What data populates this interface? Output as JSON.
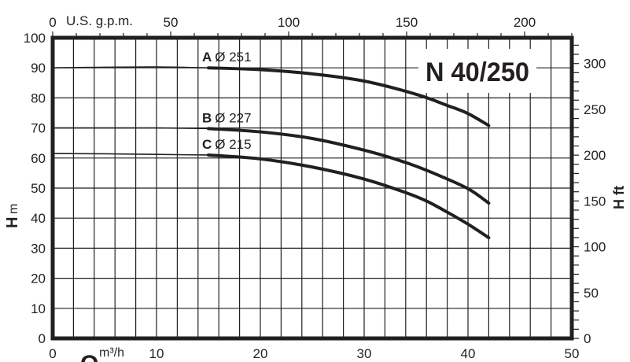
{
  "chart_data": {
    "type": "line",
    "title": "N 40/250",
    "xlabel": "Q",
    "xunit": "m³/h",
    "x2label": "U.S. g.p.m.",
    "ylabel": "H",
    "yunit": "m",
    "y2label": "H ft",
    "xlim": [
      0,
      50
    ],
    "ylim": [
      0,
      100
    ],
    "x2lim": [
      0,
      220
    ],
    "y2lim": [
      0,
      328
    ],
    "grid": true,
    "x_ticks": [
      "0",
      "10",
      "20",
      "30",
      "40",
      "50"
    ],
    "y_ticks": [
      "0",
      "10",
      "20",
      "30",
      "40",
      "50",
      "60",
      "70",
      "80",
      "90",
      "100"
    ],
    "x2_ticks": [
      "0",
      "50",
      "100",
      "150",
      "200"
    ],
    "y2_ticks": [
      "0",
      "50",
      "100",
      "150",
      "200",
      "250",
      "300"
    ],
    "series": [
      {
        "name": "A",
        "diameter": "Ø 251",
        "thin_until": 15,
        "points": [
          [
            0,
            90
          ],
          [
            5,
            90.2
          ],
          [
            10,
            90.3
          ],
          [
            15,
            90
          ],
          [
            20,
            89.4
          ],
          [
            25,
            88
          ],
          [
            30,
            85.6
          ],
          [
            35,
            81.2
          ],
          [
            38,
            77.5
          ],
          [
            40,
            74.8
          ],
          [
            42,
            70.8
          ]
        ]
      },
      {
        "name": "B",
        "diameter": "Ø 227",
        "thin_until": 15,
        "points": [
          [
            0,
            70
          ],
          [
            5,
            70
          ],
          [
            10,
            70
          ],
          [
            15,
            69.8
          ],
          [
            20,
            68.7
          ],
          [
            25,
            66.5
          ],
          [
            30,
            62.6
          ],
          [
            34,
            58.5
          ],
          [
            37,
            54.5
          ],
          [
            40,
            49.8
          ],
          [
            42,
            45
          ]
        ]
      },
      {
        "name": "C",
        "diameter": "Ø 215",
        "thin_until": 15,
        "points": [
          [
            0,
            61.5
          ],
          [
            5,
            61.4
          ],
          [
            10,
            61.2
          ],
          [
            15,
            61
          ],
          [
            20,
            59.7
          ],
          [
            25,
            57
          ],
          [
            30,
            53
          ],
          [
            34,
            48.5
          ],
          [
            36,
            45.7
          ],
          [
            38,
            42
          ],
          [
            40,
            38
          ],
          [
            42,
            33.5
          ]
        ]
      }
    ]
  }
}
